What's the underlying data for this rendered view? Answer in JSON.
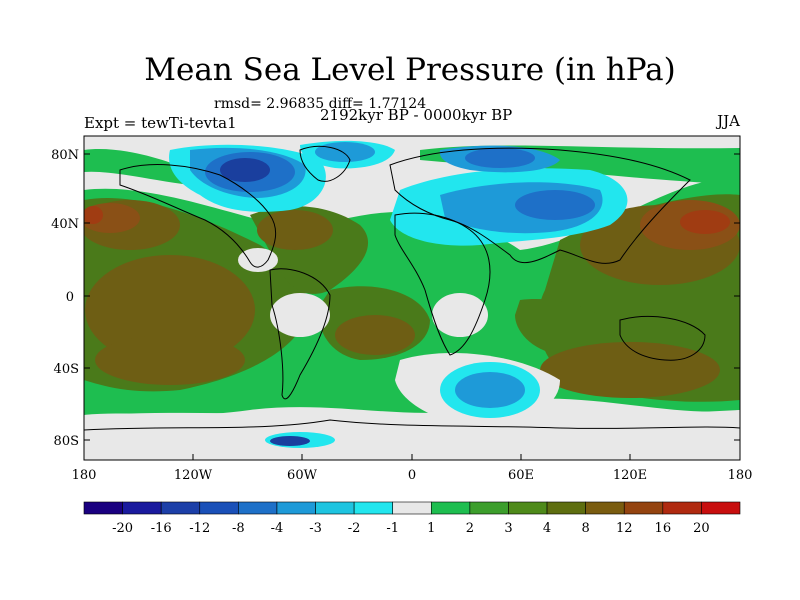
{
  "title": "Mean Sea Level Pressure (in hPa)",
  "stats": "rmsd= 2.96835 diff= 1.77124",
  "experiment": "Expt = tewTi-tevta1",
  "period": "2192kyr BP - 0000kyr BP",
  "season": "JJA",
  "lat_labels": [
    "80N",
    "40N",
    "0",
    "40S",
    "80S"
  ],
  "lon_labels": [
    "180",
    "120W",
    "60W",
    "0",
    "60E",
    "120E",
    "180"
  ],
  "colorbar": {
    "labels": [
      "-20",
      "-16",
      "-12",
      "-8",
      "-4",
      "-3",
      "-2",
      "-1",
      "1",
      "2",
      "3",
      "4",
      "8",
      "12",
      "16",
      "20"
    ],
    "colors": [
      "#1a0080",
      "#1a1a9e",
      "#1c3fa8",
      "#1a50b8",
      "#1e70c8",
      "#1e9ad8",
      "#1ec4e0",
      "#22e6ee",
      "#e8e8e8",
      "#1ebe50",
      "#3c9e2c",
      "#4e8a1a",
      "#5e6e10",
      "#7a5c10",
      "#944410",
      "#b02a10",
      "#c80e0e"
    ]
  },
  "colors": {
    "neutral": "#e8e8e8",
    "green": "#1ebe50",
    "darkgreen": "#4a7a1a",
    "olive": "#6e5e14",
    "brown": "#8a5016",
    "rust": "#a03c12",
    "cyan": "#22e6ee",
    "sky": "#1e9ad8",
    "blue": "#1e70c8",
    "navy": "#1a3f9e"
  }
}
